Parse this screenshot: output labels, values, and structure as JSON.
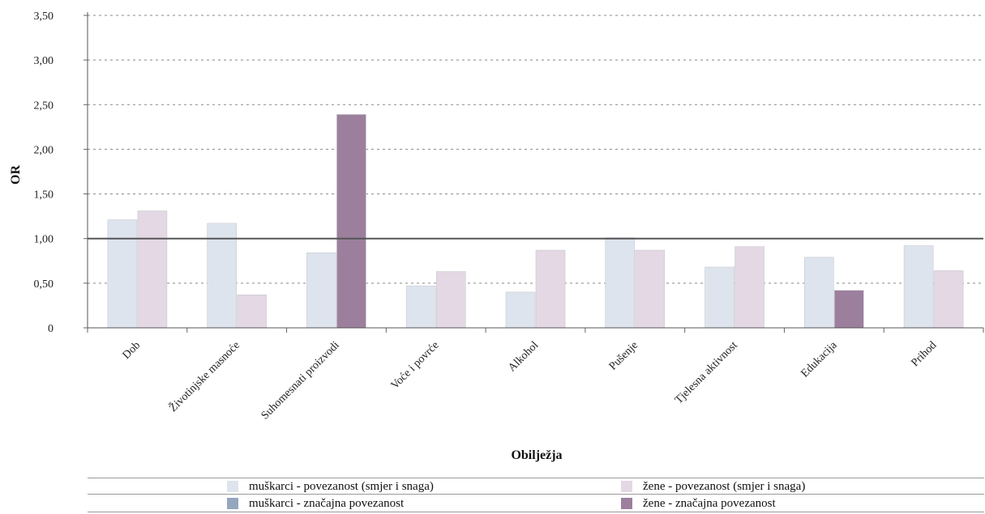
{
  "chart_data": {
    "type": "bar",
    "xlabel": "Obilježja",
    "ylabel": "OR",
    "ylim": [
      0,
      3.5
    ],
    "yticks": [
      "0",
      "0,50",
      "1,00",
      "1,50",
      "2,00",
      "2,50",
      "3,00",
      "3,50"
    ],
    "reference_line": 1.0,
    "grid": "horizontal dotted",
    "legend_position": "bottom",
    "categories": [
      "Dob",
      "Životinjske masnoće",
      "Suhomesnati proizvodi",
      "Voće i povrće",
      "Alkohol",
      "Pušenje",
      "Tjelesna aktivnost",
      "Edukacija",
      "Prihod"
    ],
    "series": [
      {
        "name": "muškarci",
        "values": [
          1.21,
          1.17,
          0.84,
          0.47,
          0.4,
          1.01,
          0.68,
          0.79,
          0.92
        ],
        "significant": [
          false,
          false,
          false,
          false,
          false,
          false,
          false,
          false,
          false
        ]
      },
      {
        "name": "žene",
        "values": [
          1.31,
          0.37,
          2.39,
          0.63,
          0.87,
          0.87,
          0.91,
          0.42,
          0.64
        ],
        "significant": [
          false,
          false,
          true,
          false,
          false,
          false,
          false,
          true,
          false
        ]
      }
    ],
    "legend": [
      {
        "label": "muškarci - povezanost (smjer i snaga)",
        "color": "#dde4ee"
      },
      {
        "label": "žene - povezanost (smjer i snaga)",
        "color": "#e3d8e4"
      },
      {
        "label": "muškarci - značajna povezanost",
        "color": "#93a7be"
      },
      {
        "label": "žene - značajna povezanost",
        "color": "#9c7f9d"
      }
    ],
    "colors": {
      "men": "#dde4ee",
      "women": "#e3d8e4",
      "men_significant": "#93a7be",
      "women_significant": "#9c7f9d",
      "reference_line": "#555555",
      "grid": "#888888"
    }
  }
}
